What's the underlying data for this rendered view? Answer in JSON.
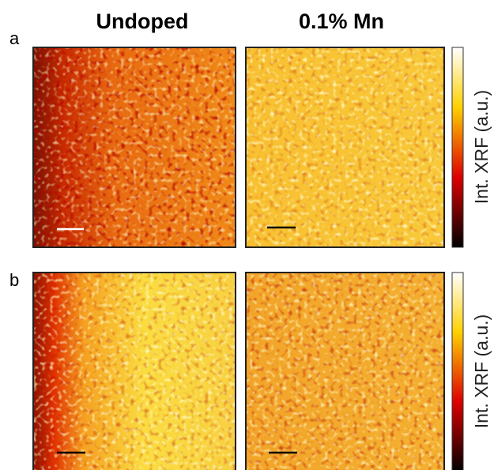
{
  "figure": {
    "column_titles": [
      "Undoped",
      "0.1% Mn"
    ],
    "rows": [
      {
        "label": "a",
        "colorbar_label": "Int. XRF (a.u.)"
      },
      {
        "label": "b",
        "colorbar_label": "Int. XRF (a.u.)"
      }
    ]
  }
}
